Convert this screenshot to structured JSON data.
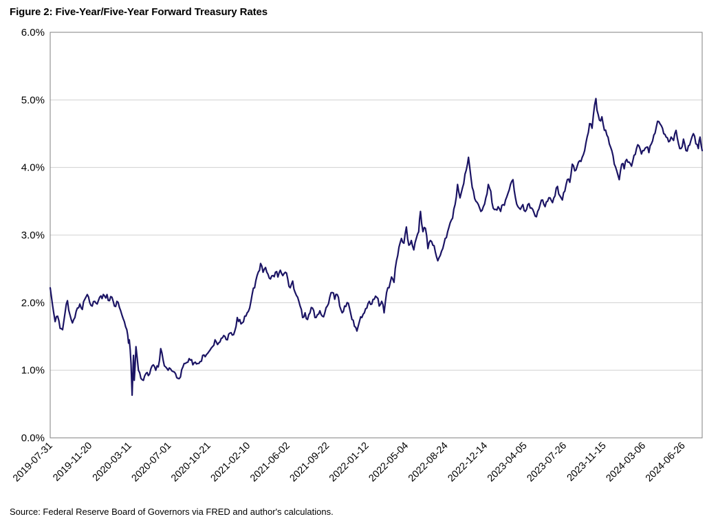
{
  "title": "Figure 2: Five-Year/Five-Year Forward Treasury Rates",
  "source": "Source: Federal Reserve Board of Governors via FRED and author's calculations.",
  "chart_data": {
    "type": "line",
    "title": "Figure 2: Five-Year/Five-Year Forward Treasury Rates",
    "xlabel": "",
    "ylabel": "",
    "ylim": [
      0,
      6
    ],
    "yticks": [
      0,
      1,
      2,
      3,
      4,
      5,
      6
    ],
    "ytick_labels": [
      "0.0%",
      "1.0%",
      "2.0%",
      "3.0%",
      "4.0%",
      "5.0%",
      "6.0%"
    ],
    "xlim": [
      "2019-07-31",
      "2024-08-20"
    ],
    "xtick_labels": [
      "2019-07-31",
      "2019-11-20",
      "2020-03-11",
      "2020-07-01",
      "2020-10-21",
      "2021-02-10",
      "2021-06-02",
      "2021-09-22",
      "2022-01-12",
      "2022-05-04",
      "2022-08-24",
      "2022-12-14",
      "2023-04-05",
      "2023-07-26",
      "2023-11-15",
      "2024-03-06",
      "2024-06-26"
    ],
    "grid": "horizontal",
    "line_color": "#1b1464",
    "series": [
      {
        "points": [
          [
            "2019-07-31",
            2.22
          ],
          [
            "2019-08-07",
            1.95
          ],
          [
            "2019-08-14",
            1.72
          ],
          [
            "2019-08-21",
            1.8
          ],
          [
            "2019-08-28",
            1.62
          ],
          [
            "2019-09-04",
            1.6
          ],
          [
            "2019-09-11",
            1.85
          ],
          [
            "2019-09-18",
            2.03
          ],
          [
            "2019-09-25",
            1.82
          ],
          [
            "2019-10-02",
            1.7
          ],
          [
            "2019-10-09",
            1.78
          ],
          [
            "2019-10-16",
            1.92
          ],
          [
            "2019-10-23",
            1.98
          ],
          [
            "2019-10-30",
            1.9
          ],
          [
            "2019-11-06",
            2.05
          ],
          [
            "2019-11-13",
            2.12
          ],
          [
            "2019-11-20",
            2.0
          ],
          [
            "2019-11-27",
            1.95
          ],
          [
            "2019-12-04",
            2.02
          ],
          [
            "2019-12-11",
            1.98
          ],
          [
            "2019-12-18",
            2.08
          ],
          [
            "2019-12-25",
            2.06
          ],
          [
            "2020-01-01",
            2.1
          ],
          [
            "2020-01-08",
            2.12
          ],
          [
            "2020-01-15",
            2.03
          ],
          [
            "2020-01-22",
            2.08
          ],
          [
            "2020-01-29",
            1.95
          ],
          [
            "2020-02-05",
            2.02
          ],
          [
            "2020-02-12",
            1.93
          ],
          [
            "2020-02-19",
            1.82
          ],
          [
            "2020-02-26",
            1.72
          ],
          [
            "2020-03-04",
            1.6
          ],
          [
            "2020-03-09",
            1.4
          ],
          [
            "2020-03-11",
            1.45
          ],
          [
            "2020-03-16",
            1.1
          ],
          [
            "2020-03-19",
            0.63
          ],
          [
            "2020-03-23",
            1.22
          ],
          [
            "2020-03-25",
            0.85
          ],
          [
            "2020-03-30",
            1.35
          ],
          [
            "2020-04-06",
            1.0
          ],
          [
            "2020-04-13",
            0.88
          ],
          [
            "2020-04-20",
            0.85
          ],
          [
            "2020-04-27",
            0.95
          ],
          [
            "2020-05-04",
            0.92
          ],
          [
            "2020-05-11",
            1.02
          ],
          [
            "2020-05-18",
            1.08
          ],
          [
            "2020-05-25",
            1.0
          ],
          [
            "2020-06-01",
            1.05
          ],
          [
            "2020-06-08",
            1.32
          ],
          [
            "2020-06-15",
            1.15
          ],
          [
            "2020-06-22",
            1.05
          ],
          [
            "2020-06-29",
            1.0
          ],
          [
            "2020-07-06",
            1.02
          ],
          [
            "2020-07-13",
            0.98
          ],
          [
            "2020-07-20",
            0.95
          ],
          [
            "2020-07-27",
            0.88
          ],
          [
            "2020-08-03",
            0.9
          ],
          [
            "2020-08-10",
            1.05
          ],
          [
            "2020-08-17",
            1.1
          ],
          [
            "2020-08-24",
            1.12
          ],
          [
            "2020-08-31",
            1.15
          ],
          [
            "2020-09-07",
            1.08
          ],
          [
            "2020-09-14",
            1.12
          ],
          [
            "2020-09-21",
            1.1
          ],
          [
            "2020-09-28",
            1.13
          ],
          [
            "2020-10-05",
            1.22
          ],
          [
            "2020-10-12",
            1.2
          ],
          [
            "2020-10-19",
            1.25
          ],
          [
            "2020-10-26",
            1.3
          ],
          [
            "2020-11-02",
            1.35
          ],
          [
            "2020-11-09",
            1.45
          ],
          [
            "2020-11-16",
            1.38
          ],
          [
            "2020-11-23",
            1.42
          ],
          [
            "2020-11-30",
            1.48
          ],
          [
            "2020-12-07",
            1.5
          ],
          [
            "2020-12-14",
            1.45
          ],
          [
            "2020-12-21",
            1.55
          ],
          [
            "2020-12-28",
            1.52
          ],
          [
            "2021-01-04",
            1.58
          ],
          [
            "2021-01-11",
            1.78
          ],
          [
            "2021-01-18",
            1.75
          ],
          [
            "2021-01-25",
            1.7
          ],
          [
            "2021-02-01",
            1.8
          ],
          [
            "2021-02-08",
            1.85
          ],
          [
            "2021-02-15",
            1.92
          ],
          [
            "2021-02-22",
            2.12
          ],
          [
            "2021-03-01",
            2.22
          ],
          [
            "2021-03-08",
            2.4
          ],
          [
            "2021-03-15",
            2.48
          ],
          [
            "2021-03-18",
            2.58
          ],
          [
            "2021-03-25",
            2.45
          ],
          [
            "2021-04-01",
            2.52
          ],
          [
            "2021-04-08",
            2.42
          ],
          [
            "2021-04-15",
            2.35
          ],
          [
            "2021-04-22",
            2.4
          ],
          [
            "2021-04-29",
            2.45
          ],
          [
            "2021-05-06",
            2.38
          ],
          [
            "2021-05-13",
            2.48
          ],
          [
            "2021-05-20",
            2.4
          ],
          [
            "2021-05-27",
            2.45
          ],
          [
            "2021-06-03",
            2.35
          ],
          [
            "2021-06-10",
            2.22
          ],
          [
            "2021-06-17",
            2.32
          ],
          [
            "2021-06-24",
            2.15
          ],
          [
            "2021-07-01",
            2.08
          ],
          [
            "2021-07-08",
            1.95
          ],
          [
            "2021-07-15",
            1.78
          ],
          [
            "2021-07-22",
            1.85
          ],
          [
            "2021-07-29",
            1.75
          ],
          [
            "2021-08-05",
            1.85
          ],
          [
            "2021-08-12",
            1.92
          ],
          [
            "2021-08-19",
            1.78
          ],
          [
            "2021-08-26",
            1.82
          ],
          [
            "2021-09-02",
            1.88
          ],
          [
            "2021-09-09",
            1.8
          ],
          [
            "2021-09-16",
            1.85
          ],
          [
            "2021-09-23",
            1.95
          ],
          [
            "2021-09-30",
            2.08
          ],
          [
            "2021-10-07",
            2.15
          ],
          [
            "2021-10-14",
            2.05
          ],
          [
            "2021-10-21",
            2.12
          ],
          [
            "2021-10-28",
            1.95
          ],
          [
            "2021-11-04",
            1.85
          ],
          [
            "2021-11-11",
            1.95
          ],
          [
            "2021-11-18",
            2.0
          ],
          [
            "2021-11-25",
            1.92
          ],
          [
            "2021-12-02",
            1.75
          ],
          [
            "2021-12-09",
            1.65
          ],
          [
            "2021-12-16",
            1.58
          ],
          [
            "2021-12-23",
            1.72
          ],
          [
            "2021-12-30",
            1.78
          ],
          [
            "2022-01-06",
            1.85
          ],
          [
            "2022-01-13",
            1.92
          ],
          [
            "2022-01-20",
            2.02
          ],
          [
            "2022-01-27",
            1.98
          ],
          [
            "2022-02-03",
            2.05
          ],
          [
            "2022-02-10",
            2.08
          ],
          [
            "2022-02-17",
            1.95
          ],
          [
            "2022-02-24",
            2.02
          ],
          [
            "2022-03-03",
            1.85
          ],
          [
            "2022-03-10",
            2.15
          ],
          [
            "2022-03-17",
            2.22
          ],
          [
            "2022-03-24",
            2.38
          ],
          [
            "2022-03-31",
            2.3
          ],
          [
            "2022-04-07",
            2.62
          ],
          [
            "2022-04-14",
            2.82
          ],
          [
            "2022-04-21",
            2.95
          ],
          [
            "2022-04-28",
            2.88
          ],
          [
            "2022-05-05",
            3.12
          ],
          [
            "2022-05-12",
            2.85
          ],
          [
            "2022-05-19",
            2.92
          ],
          [
            "2022-05-26",
            2.78
          ],
          [
            "2022-06-02",
            2.95
          ],
          [
            "2022-06-09",
            3.05
          ],
          [
            "2022-06-14",
            3.35
          ],
          [
            "2022-06-21",
            3.05
          ],
          [
            "2022-06-28",
            3.1
          ],
          [
            "2022-07-05",
            2.8
          ],
          [
            "2022-07-12",
            2.92
          ],
          [
            "2022-07-19",
            2.85
          ],
          [
            "2022-07-26",
            2.75
          ],
          [
            "2022-08-02",
            2.62
          ],
          [
            "2022-08-09",
            2.7
          ],
          [
            "2022-08-16",
            2.8
          ],
          [
            "2022-08-23",
            2.95
          ],
          [
            "2022-08-30",
            3.05
          ],
          [
            "2022-09-06",
            3.18
          ],
          [
            "2022-09-13",
            3.25
          ],
          [
            "2022-09-20",
            3.45
          ],
          [
            "2022-09-27",
            3.75
          ],
          [
            "2022-10-04",
            3.55
          ],
          [
            "2022-10-11",
            3.7
          ],
          [
            "2022-10-18",
            3.9
          ],
          [
            "2022-10-25",
            4.05
          ],
          [
            "2022-10-28",
            4.15
          ],
          [
            "2022-11-04",
            3.85
          ],
          [
            "2022-11-11",
            3.65
          ],
          [
            "2022-11-18",
            3.5
          ],
          [
            "2022-11-25",
            3.45
          ],
          [
            "2022-12-02",
            3.35
          ],
          [
            "2022-12-09",
            3.42
          ],
          [
            "2022-12-16",
            3.55
          ],
          [
            "2022-12-23",
            3.75
          ],
          [
            "2022-12-30",
            3.65
          ],
          [
            "2023-01-06",
            3.4
          ],
          [
            "2023-01-13",
            3.38
          ],
          [
            "2023-01-20",
            3.42
          ],
          [
            "2023-01-27",
            3.35
          ],
          [
            "2023-02-03",
            3.45
          ],
          [
            "2023-02-10",
            3.52
          ],
          [
            "2023-02-17",
            3.62
          ],
          [
            "2023-02-24",
            3.75
          ],
          [
            "2023-03-03",
            3.82
          ],
          [
            "2023-03-10",
            3.55
          ],
          [
            "2023-03-17",
            3.42
          ],
          [
            "2023-03-24",
            3.38
          ],
          [
            "2023-03-31",
            3.45
          ],
          [
            "2023-04-07",
            3.35
          ],
          [
            "2023-04-14",
            3.45
          ],
          [
            "2023-04-21",
            3.4
          ],
          [
            "2023-04-28",
            3.38
          ],
          [
            "2023-05-05",
            3.28
          ],
          [
            "2023-05-12",
            3.35
          ],
          [
            "2023-05-19",
            3.45
          ],
          [
            "2023-05-26",
            3.52
          ],
          [
            "2023-06-02",
            3.42
          ],
          [
            "2023-06-09",
            3.5
          ],
          [
            "2023-06-16",
            3.55
          ],
          [
            "2023-06-23",
            3.48
          ],
          [
            "2023-06-30",
            3.58
          ],
          [
            "2023-07-07",
            3.72
          ],
          [
            "2023-07-14",
            3.58
          ],
          [
            "2023-07-21",
            3.52
          ],
          [
            "2023-07-28",
            3.65
          ],
          [
            "2023-08-04",
            3.82
          ],
          [
            "2023-08-11",
            3.78
          ],
          [
            "2023-08-18",
            4.05
          ],
          [
            "2023-08-25",
            3.95
          ],
          [
            "2023-09-01",
            4.02
          ],
          [
            "2023-09-08",
            4.1
          ],
          [
            "2023-09-15",
            4.15
          ],
          [
            "2023-09-22",
            4.25
          ],
          [
            "2023-09-29",
            4.45
          ],
          [
            "2023-10-06",
            4.65
          ],
          [
            "2023-10-13",
            4.58
          ],
          [
            "2023-10-20",
            4.92
          ],
          [
            "2023-10-24",
            5.02
          ],
          [
            "2023-10-27",
            4.85
          ],
          [
            "2023-11-03",
            4.7
          ],
          [
            "2023-11-10",
            4.75
          ],
          [
            "2023-11-17",
            4.55
          ],
          [
            "2023-11-24",
            4.48
          ],
          [
            "2023-12-01",
            4.35
          ],
          [
            "2023-12-08",
            4.25
          ],
          [
            "2023-12-15",
            4.05
          ],
          [
            "2023-12-22",
            3.95
          ],
          [
            "2023-12-29",
            3.82
          ],
          [
            "2024-01-05",
            4.05
          ],
          [
            "2024-01-12",
            3.98
          ],
          [
            "2024-01-19",
            4.12
          ],
          [
            "2024-01-26",
            4.08
          ],
          [
            "2024-02-02",
            4.02
          ],
          [
            "2024-02-09",
            4.18
          ],
          [
            "2024-02-16",
            4.28
          ],
          [
            "2024-02-23",
            4.32
          ],
          [
            "2024-03-01",
            4.2
          ],
          [
            "2024-03-08",
            4.25
          ],
          [
            "2024-03-15",
            4.3
          ],
          [
            "2024-03-22",
            4.22
          ],
          [
            "2024-03-29",
            4.35
          ],
          [
            "2024-04-05",
            4.48
          ],
          [
            "2024-04-12",
            4.6
          ],
          [
            "2024-04-19",
            4.68
          ],
          [
            "2024-04-26",
            4.62
          ],
          [
            "2024-05-03",
            4.5
          ],
          [
            "2024-05-10",
            4.45
          ],
          [
            "2024-05-17",
            4.38
          ],
          [
            "2024-05-24",
            4.45
          ],
          [
            "2024-05-31",
            4.4
          ],
          [
            "2024-06-07",
            4.55
          ],
          [
            "2024-06-14",
            4.35
          ],
          [
            "2024-06-21",
            4.28
          ],
          [
            "2024-06-28",
            4.42
          ],
          [
            "2024-07-05",
            4.25
          ],
          [
            "2024-07-12",
            4.32
          ],
          [
            "2024-07-19",
            4.4
          ],
          [
            "2024-07-26",
            4.5
          ],
          [
            "2024-08-02",
            4.35
          ],
          [
            "2024-08-09",
            4.28
          ],
          [
            "2024-08-14",
            4.45
          ],
          [
            "2024-08-20",
            4.25
          ]
        ]
      }
    ]
  }
}
